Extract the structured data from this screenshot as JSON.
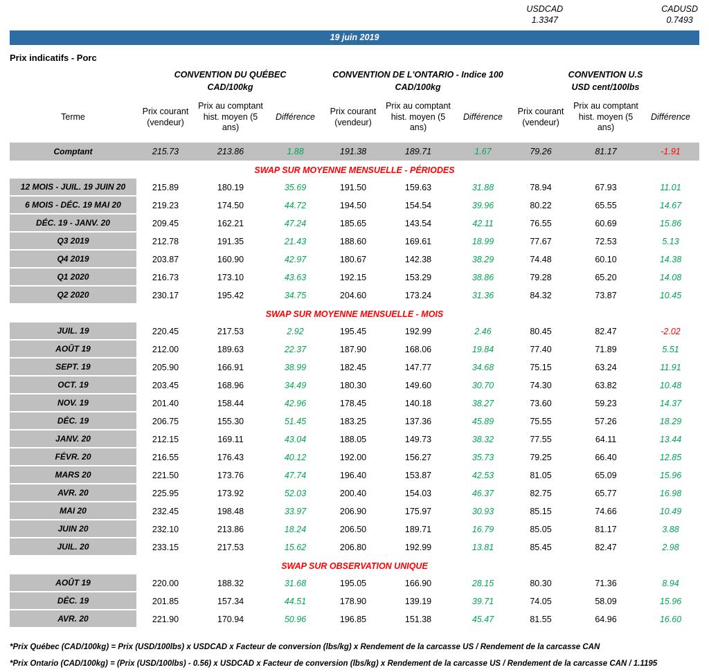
{
  "fx": {
    "pairs": [
      {
        "label": "USDCAD",
        "value": "1.3347"
      },
      {
        "label": "CADUSD",
        "value": "0.7493"
      }
    ]
  },
  "header": {
    "date": "19 juin 2019",
    "title": "Prix indicatifs - Porc"
  },
  "groups": [
    {
      "title": "CONVENTION DU QUÉBEC",
      "unit": "CAD/100kg"
    },
    {
      "title": "CONVENTION DE L'ONTARIO - Indice 100",
      "unit": "CAD/100kg"
    },
    {
      "title": "CONVENTION U.S",
      "unit": "USD cent/100lbs"
    }
  ],
  "columns": {
    "terme": "Terme",
    "current": "Prix courant (vendeur)",
    "hist": "Prix au comptant hist. moyen (5 ans)",
    "diff": "Différence"
  },
  "spot": {
    "label": "Comptant",
    "values": [
      "215.73",
      "213.86",
      "1.88",
      "191.38",
      "189.71",
      "1.67",
      "79.26",
      "81.17",
      "-1.91"
    ]
  },
  "sections": [
    {
      "title": "SWAP SUR MOYENNE MENSUELLE - PÉRIODES",
      "rows": [
        {
          "label": "12 MOIS - JUIL. 19 JUIN 20",
          "values": [
            "215.89",
            "180.19",
            "35.69",
            "191.50",
            "159.63",
            "31.88",
            "78.94",
            "67.93",
            "11.01"
          ]
        },
        {
          "label": "6 MOIS - DÉC. 19 MAI 20",
          "values": [
            "219.23",
            "174.50",
            "44.72",
            "194.50",
            "154.54",
            "39.96",
            "80.22",
            "65.55",
            "14.67"
          ]
        },
        {
          "label": "DÉC. 19 - JANV. 20",
          "values": [
            "209.45",
            "162.21",
            "47.24",
            "185.65",
            "143.54",
            "42.11",
            "76.55",
            "60.69",
            "15.86"
          ]
        },
        {
          "label": "Q3 2019",
          "values": [
            "212.78",
            "191.35",
            "21.43",
            "188.60",
            "169.61",
            "18.99",
            "77.67",
            "72.53",
            "5.13"
          ]
        },
        {
          "label": "Q4 2019",
          "values": [
            "203.87",
            "160.90",
            "42.97",
            "180.67",
            "142.38",
            "38.29",
            "74.48",
            "60.10",
            "14.38"
          ]
        },
        {
          "label": "Q1 2020",
          "values": [
            "216.73",
            "173.10",
            "43.63",
            "192.15",
            "153.29",
            "38.86",
            "79.28",
            "65.20",
            "14.08"
          ]
        },
        {
          "label": "Q2 2020",
          "values": [
            "230.17",
            "195.42",
            "34.75",
            "204.60",
            "173.24",
            "31.36",
            "84.32",
            "73.87",
            "10.45"
          ]
        }
      ]
    },
    {
      "title": "SWAP SUR MOYENNE MENSUELLE - MOIS",
      "rows": [
        {
          "label": "JUIL. 19",
          "values": [
            "220.45",
            "217.53",
            "2.92",
            "195.45",
            "192.99",
            "2.46",
            "80.45",
            "82.47",
            "-2.02"
          ]
        },
        {
          "label": "AOÛT 19",
          "values": [
            "212.00",
            "189.63",
            "22.37",
            "187.90",
            "168.06",
            "19.84",
            "77.40",
            "71.89",
            "5.51"
          ]
        },
        {
          "label": "SEPT. 19",
          "values": [
            "205.90",
            "166.91",
            "38.99",
            "182.45",
            "147.77",
            "34.68",
            "75.15",
            "63.24",
            "11.91"
          ]
        },
        {
          "label": "OCT. 19",
          "values": [
            "203.45",
            "168.96",
            "34.49",
            "180.30",
            "149.60",
            "30.70",
            "74.30",
            "63.82",
            "10.48"
          ]
        },
        {
          "label": "NOV. 19",
          "values": [
            "201.40",
            "158.44",
            "42.96",
            "178.45",
            "140.18",
            "38.27",
            "73.60",
            "59.23",
            "14.37"
          ]
        },
        {
          "label": "DÉC. 19",
          "values": [
            "206.75",
            "155.30",
            "51.45",
            "183.25",
            "137.36",
            "45.89",
            "75.55",
            "57.26",
            "18.29"
          ]
        },
        {
          "label": "JANV. 20",
          "values": [
            "212.15",
            "169.11",
            "43.04",
            "188.05",
            "149.73",
            "38.32",
            "77.55",
            "64.11",
            "13.44"
          ]
        },
        {
          "label": "FÉVR. 20",
          "values": [
            "216.55",
            "176.43",
            "40.12",
            "192.00",
            "156.27",
            "35.73",
            "79.25",
            "66.40",
            "12.85"
          ]
        },
        {
          "label": "MARS 20",
          "values": [
            "221.50",
            "173.76",
            "47.74",
            "196.40",
            "153.87",
            "42.53",
            "81.05",
            "65.09",
            "15.96"
          ]
        },
        {
          "label": "AVR. 20",
          "values": [
            "225.95",
            "173.92",
            "52.03",
            "200.40",
            "154.03",
            "46.37",
            "82.75",
            "65.77",
            "16.98"
          ]
        },
        {
          "label": "MAI 20",
          "values": [
            "232.45",
            "198.48",
            "33.97",
            "206.90",
            "175.97",
            "30.93",
            "85.15",
            "74.66",
            "10.49"
          ]
        },
        {
          "label": "JUIN 20",
          "values": [
            "232.10",
            "213.86",
            "18.24",
            "206.50",
            "189.71",
            "16.79",
            "85.05",
            "81.17",
            "3.88"
          ]
        },
        {
          "label": "JUIL. 20",
          "values": [
            "233.15",
            "217.53",
            "15.62",
            "206.80",
            "192.99",
            "13.81",
            "85.45",
            "82.47",
            "2.98"
          ]
        }
      ]
    },
    {
      "title": "SWAP SUR OBSERVATION UNIQUE",
      "rows": [
        {
          "label": "AOÛT 19",
          "values": [
            "220.00",
            "188.32",
            "31.68",
            "195.05",
            "166.90",
            "28.15",
            "80.30",
            "71.36",
            "8.94"
          ]
        },
        {
          "label": "DÉC. 19",
          "values": [
            "201.85",
            "157.34",
            "44.51",
            "178.90",
            "139.19",
            "39.71",
            "74.05",
            "58.09",
            "15.96"
          ]
        },
        {
          "label": "AVR. 20",
          "values": [
            "221.90",
            "170.94",
            "50.96",
            "196.85",
            "151.38",
            "45.47",
            "81.55",
            "64.96",
            "16.60"
          ]
        }
      ]
    }
  ],
  "footnotes": [
    "*Prix Québec (CAD/100kg) = Prix (USD/100lbs) x USDCAD x Facteur de conversion (lbs/kg) x Rendement de la carcasse US / Rendement de la carcasse CAN",
    "*Prix Ontario (CAD/100kg) = (Prix (USD/100lbs) - 0.56) x USDCAD x Facteur de conversion (lbs/kg) x Rendement de la carcasse US / Rendement de la carcasse CAN / 1.1195"
  ]
}
